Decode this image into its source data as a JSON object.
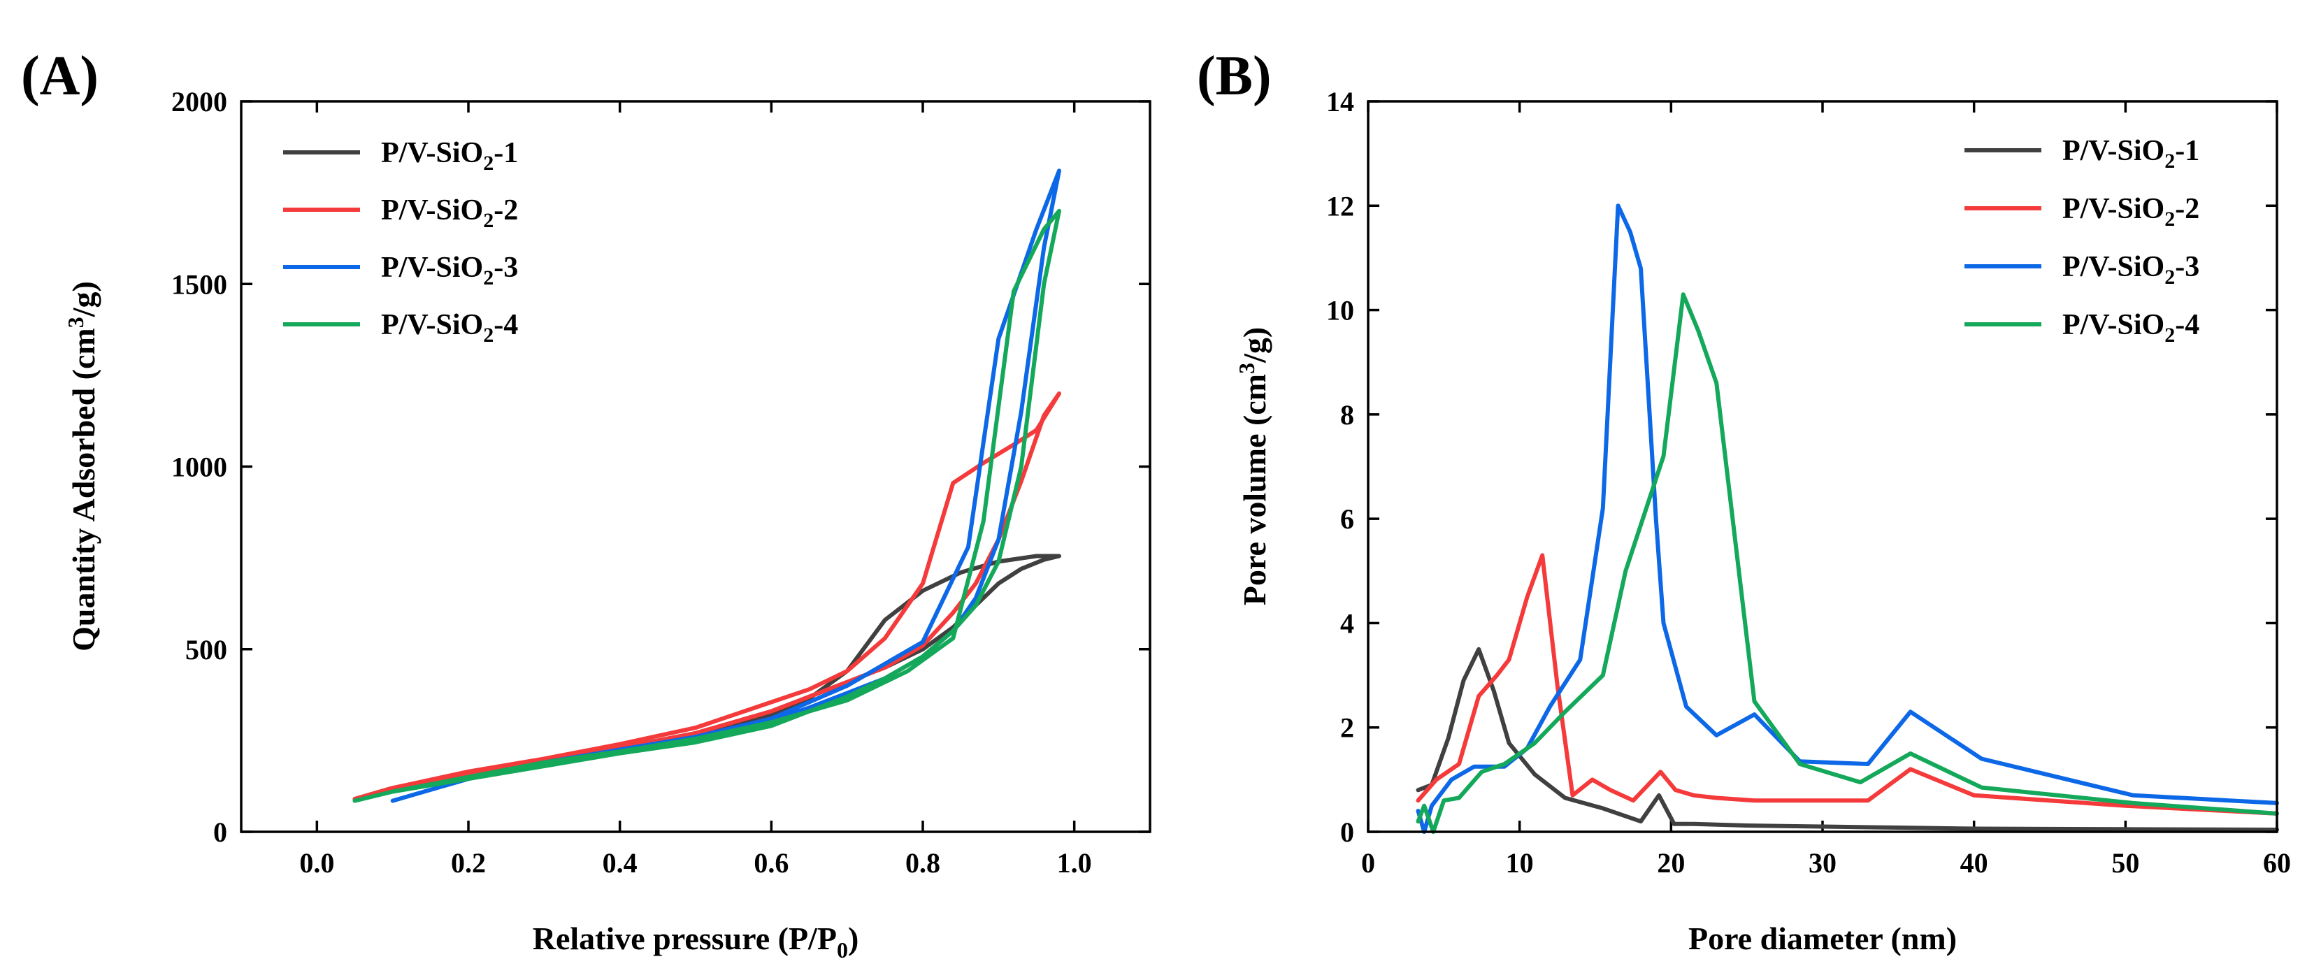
{
  "colors": {
    "P/V-SiO2-1": "#404040",
    "P/V-SiO2-2": "#f43a3a",
    "P/V-SiO2-3": "#0c68e6",
    "P/V-SiO2-4": "#14a85a"
  },
  "chart_data": [
    {
      "type": "line",
      "panel_label": "(A)",
      "title": "",
      "xlabel": "Relative pressure (P/P0)",
      "xlabel_main": "Relative pressure (P/P",
      "xlabel_sub": "0",
      "xlabel_tail": ")",
      "ylabel": "Quantity Adsorbed (cm3/g)",
      "ylabel_main": "Quantity Adsorbed (cm",
      "ylabel_sup": "3",
      "ylabel_tail": "/g)",
      "xlim": [
        -0.1,
        1.1
      ],
      "ylim": [
        0,
        2000
      ],
      "xticks": [
        "0.0",
        "0.2",
        "0.4",
        "0.6",
        "0.8",
        "1.0"
      ],
      "xtick_values": [
        0.0,
        0.2,
        0.4,
        0.6,
        0.8,
        1.0
      ],
      "yticks": [
        "0",
        "500",
        "1000",
        "1500",
        "2000"
      ],
      "ytick_values": [
        0,
        500,
        1000,
        1500,
        2000
      ],
      "legend_position": "top-left",
      "series": [
        {
          "name": "P/V-SiO2-1",
          "label_main": "P/V-SiO",
          "label_sub": "2",
          "label_tail": "-1",
          "x": [
            0.05,
            0.1,
            0.2,
            0.3,
            0.4,
            0.5,
            0.6,
            0.65,
            0.7,
            0.75,
            0.8,
            0.85,
            0.9,
            0.95,
            0.98,
            0.96,
            0.93,
            0.9,
            0.87,
            0.84,
            0.8,
            0.75,
            0.7,
            0.65,
            0.6,
            0.5,
            0.4,
            0.3,
            0.2,
            0.1,
            0.05
          ],
          "y": [
            90,
            115,
            155,
            190,
            225,
            265,
            320,
            365,
            440,
            580,
            660,
            710,
            740,
            755,
            755,
            745,
            720,
            680,
            620,
            560,
            500,
            450,
            410,
            370,
            330,
            270,
            230,
            195,
            160,
            120,
            90
          ]
        },
        {
          "name": "P/V-SiO2-2",
          "label_main": "P/V-SiO",
          "label_sub": "2",
          "label_tail": "-2",
          "x": [
            0.05,
            0.1,
            0.2,
            0.3,
            0.4,
            0.5,
            0.6,
            0.65,
            0.7,
            0.75,
            0.8,
            0.84,
            0.88,
            0.92,
            0.95,
            0.98,
            0.96,
            0.93,
            0.9,
            0.87,
            0.84,
            0.8,
            0.75,
            0.7,
            0.65,
            0.6,
            0.5,
            0.4,
            0.3,
            0.2,
            0.1,
            0.05
          ],
          "y": [
            90,
            120,
            165,
            200,
            240,
            285,
            355,
            390,
            440,
            530,
            680,
            955,
            1010,
            1060,
            1100,
            1200,
            1140,
            960,
            800,
            680,
            600,
            510,
            450,
            410,
            370,
            330,
            270,
            230,
            195,
            160,
            120,
            90
          ]
        },
        {
          "name": "P/V-SiO2-3",
          "label_main": "P/V-SiO",
          "label_sub": "2",
          "label_tail": "-3",
          "x": [
            0.1,
            0.2,
            0.3,
            0.4,
            0.5,
            0.6,
            0.7,
            0.8,
            0.86,
            0.9,
            0.95,
            0.98,
            0.96,
            0.93,
            0.9,
            0.87,
            0.84,
            0.8,
            0.75,
            0.7,
            0.65,
            0.6,
            0.5,
            0.4,
            0.3,
            0.2,
            0.1
          ],
          "y": [
            85,
            145,
            190,
            225,
            260,
            310,
            400,
            520,
            780,
            1350,
            1650,
            1810,
            1600,
            1150,
            800,
            640,
            550,
            480,
            420,
            380,
            340,
            305,
            255,
            220,
            185,
            145,
            85
          ]
        },
        {
          "name": "P/V-SiO2-4",
          "label_main": "P/V-SiO",
          "label_sub": "2",
          "label_tail": "-4",
          "x": [
            0.05,
            0.1,
            0.2,
            0.3,
            0.4,
            0.5,
            0.6,
            0.7,
            0.78,
            0.84,
            0.88,
            0.92,
            0.96,
            0.98,
            0.96,
            0.93,
            0.9,
            0.87,
            0.84,
            0.8,
            0.75,
            0.7,
            0.65,
            0.6,
            0.5,
            0.4,
            0.3,
            0.2,
            0.1,
            0.05
          ],
          "y": [
            85,
            110,
            150,
            190,
            220,
            255,
            300,
            360,
            440,
            530,
            850,
            1480,
            1650,
            1700,
            1500,
            1000,
            740,
            620,
            550,
            480,
            420,
            370,
            330,
            290,
            245,
            215,
            180,
            145,
            110,
            85
          ]
        }
      ]
    },
    {
      "type": "line",
      "panel_label": "(B)",
      "title": "",
      "xlabel": "Pore diameter (nm)",
      "ylabel": "Pore volume (cm3/g)",
      "ylabel_main": "Pore volume (cm",
      "ylabel_sup": "3",
      "ylabel_tail": "/g)",
      "xlim": [
        0,
        60
      ],
      "ylim": [
        0,
        14
      ],
      "xticks": [
        "0",
        "10",
        "20",
        "30",
        "40",
        "50",
        "60"
      ],
      "xtick_values": [
        0,
        10,
        20,
        30,
        40,
        50,
        60
      ],
      "yticks": [
        "0",
        "2",
        "4",
        "6",
        "8",
        "10",
        "12",
        "14"
      ],
      "ytick_values": [
        0,
        2,
        4,
        6,
        8,
        10,
        12,
        14
      ],
      "legend_position": "top-right",
      "series": [
        {
          "name": "P/V-SiO2-1",
          "label_main": "P/V-SiO",
          "label_sub": "2",
          "label_tail": "-1",
          "x": [
            3.3,
            4.2,
            5.3,
            6.3,
            7.3,
            8.3,
            9.3,
            11,
            13,
            15.5,
            18,
            19.2,
            20.2,
            21.5,
            25,
            30,
            35,
            40,
            50,
            60
          ],
          "y": [
            0.8,
            0.9,
            1.8,
            2.9,
            3.5,
            2.7,
            1.7,
            1.1,
            0.65,
            0.45,
            0.2,
            0.7,
            0.15,
            0.15,
            0.12,
            0.1,
            0.08,
            0.06,
            0.05,
            0.04
          ]
        },
        {
          "name": "P/V-SiO2-2",
          "label_main": "P/V-SiO",
          "label_sub": "2",
          "label_tail": "-2",
          "x": [
            3.3,
            4.5,
            6,
            7.3,
            8.5,
            9.3,
            10.5,
            11.5,
            12.5,
            13.5,
            14.8,
            16,
            17.5,
            19.3,
            20.3,
            21.5,
            23,
            25.5,
            30,
            33,
            35.8,
            40,
            50,
            60
          ],
          "y": [
            0.6,
            1.0,
            1.3,
            2.6,
            3.0,
            3.3,
            4.5,
            5.3,
            2.8,
            0.7,
            1.0,
            0.8,
            0.6,
            1.15,
            0.8,
            0.7,
            0.65,
            0.6,
            0.6,
            0.6,
            1.2,
            0.7,
            0.5,
            0.35
          ]
        },
        {
          "name": "P/V-SiO2-3",
          "label_main": "P/V-SiO",
          "label_sub": "2",
          "label_tail": "-3",
          "x": [
            3.3,
            3.7,
            4.2,
            5.5,
            7,
            9,
            10.5,
            12,
            14,
            15.5,
            16.5,
            17.3,
            18,
            19,
            19.5,
            21,
            23,
            25.5,
            28.5,
            33,
            35.8,
            40.5,
            50.5,
            60
          ],
          "y": [
            0.4,
            0.0,
            0.5,
            1.0,
            1.25,
            1.25,
            1.6,
            2.4,
            3.3,
            6.2,
            12.0,
            11.5,
            10.8,
            6.0,
            4.0,
            2.4,
            1.85,
            2.25,
            1.35,
            1.3,
            2.3,
            1.4,
            0.7,
            0.55
          ]
        },
        {
          "name": "P/V-SiO2-4",
          "label_main": "P/V-SiO",
          "label_sub": "2",
          "label_tail": "-4",
          "x": [
            3.3,
            3.7,
            4.3,
            5,
            6,
            7.5,
            9,
            11,
            13,
            15.5,
            17,
            19.5,
            20.8,
            21.8,
            23,
            25.5,
            28.5,
            32.5,
            35.8,
            40.5,
            50.5,
            60
          ],
          "y": [
            0.2,
            0.5,
            0.0,
            0.6,
            0.65,
            1.15,
            1.3,
            1.7,
            2.3,
            3.0,
            5.0,
            7.2,
            10.3,
            9.6,
            8.6,
            2.5,
            1.3,
            0.95,
            1.5,
            0.85,
            0.55,
            0.35
          ]
        }
      ]
    }
  ]
}
